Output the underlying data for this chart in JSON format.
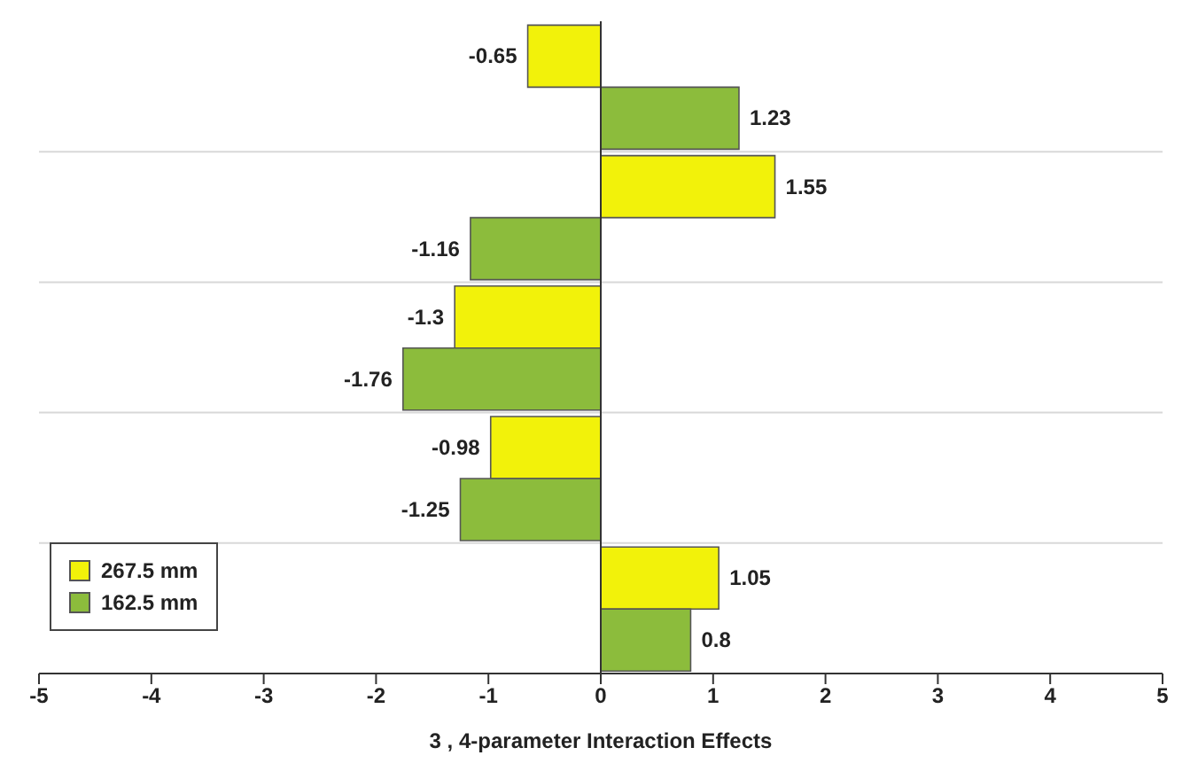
{
  "chart_data": {
    "type": "bar",
    "orientation": "horizontal",
    "xlabel": "3 , 4-parameter Interaction Effects",
    "categories": [
      null,
      null,
      null,
      null,
      null
    ],
    "series": [
      {
        "name": "267.5 mm",
        "color": "#f2f20a",
        "values": [
          -0.65,
          1.55,
          -1.3,
          -0.98,
          1.05
        ]
      },
      {
        "name": "162.5 mm",
        "color": "#8cbc3c",
        "values": [
          1.23,
          -1.16,
          -1.76,
          -1.25,
          0.8
        ]
      }
    ],
    "xlim": [
      -5,
      5
    ],
    "xticks": [
      -5,
      -4,
      -3,
      -2,
      -1,
      0,
      1,
      2,
      3,
      4,
      5
    ],
    "grid": "y",
    "legend": "bottom left",
    "data_labels": true
  }
}
